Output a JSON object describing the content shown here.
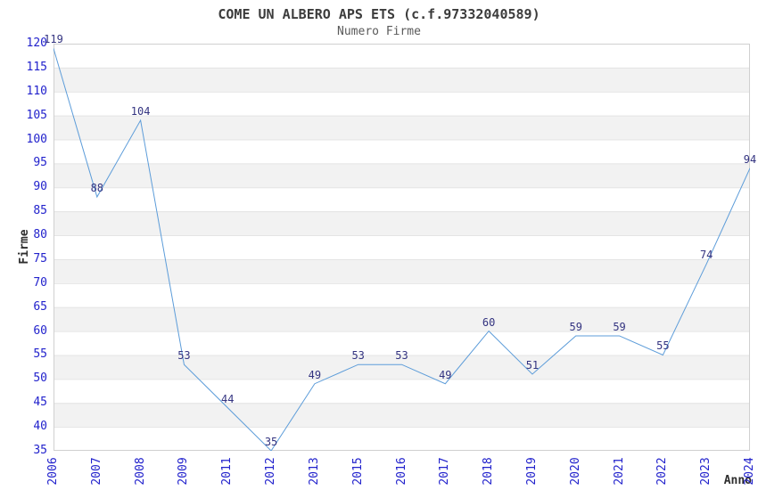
{
  "chart_data": {
    "type": "line",
    "title": "COME UN ALBERO APS ETS (c.f.97332040589)",
    "subtitle": "Numero Firme",
    "xlabel": "Anno",
    "ylabel": "Firme",
    "categories": [
      "2006",
      "2007",
      "2008",
      "2009",
      "2011",
      "2012",
      "2013",
      "2015",
      "2016",
      "2017",
      "2018",
      "2019",
      "2020",
      "2021",
      "2022",
      "2023",
      "2024"
    ],
    "values": [
      119,
      88,
      104,
      53,
      44,
      35,
      49,
      53,
      53,
      49,
      60,
      51,
      59,
      59,
      55,
      74,
      94
    ],
    "ylim": [
      35,
      120
    ],
    "y_tick_step": 5,
    "y_ticks": [
      35,
      40,
      45,
      50,
      55,
      60,
      65,
      70,
      75,
      80,
      85,
      90,
      95,
      100,
      105,
      110,
      115,
      120
    ],
    "grid": true,
    "legend": false,
    "band_fill": "alternating horizontal stripes",
    "colors": {
      "line": "#5c9cd9",
      "tick_label": "#2222cc",
      "data_label": "#333380",
      "band": "#f2f2f2",
      "gridline": "#e4e4e4",
      "border": "#d0d0d0",
      "title": "#3c3c3c",
      "subtitle": "#5a5a5a",
      "axis_title": "#2e2e2e",
      "background": "#ffffff"
    }
  }
}
